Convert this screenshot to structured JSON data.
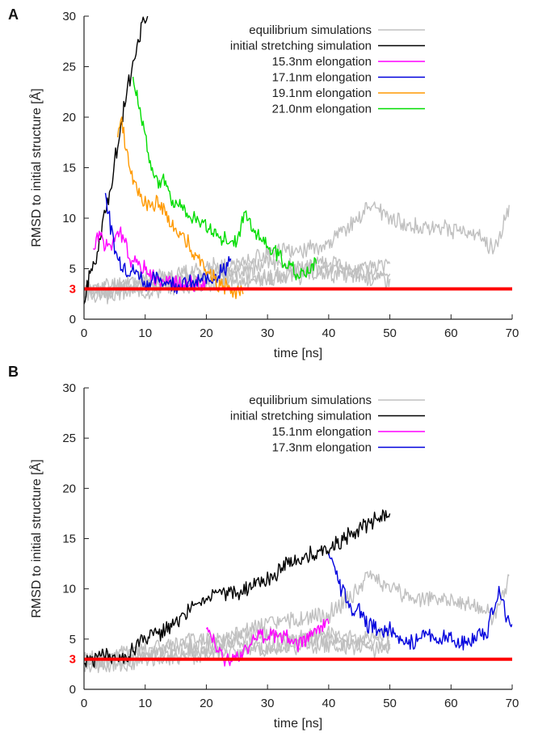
{
  "chart_data": [
    {
      "type": "line",
      "panel_label": "A",
      "xlabel": "time [ns]",
      "ylabel": "RMSD to initial structure [Å]",
      "xlim": [
        0,
        70
      ],
      "ylim": [
        0,
        30
      ],
      "xticks": [
        0,
        10,
        20,
        30,
        40,
        50,
        60,
        70
      ],
      "yticks": [
        0,
        5,
        10,
        15,
        20,
        25,
        30
      ],
      "grid": false,
      "legend_position": "top-right",
      "reference_line": {
        "y": 3,
        "label": "3",
        "color": "#ff0000"
      },
      "series": [
        {
          "name": "equilibrium simulations",
          "color": "#c0c0c0",
          "seed": 11,
          "points": [
            [
              0,
              2.8
            ],
            [
              5,
              3.5
            ],
            [
              10,
              4.0
            ],
            [
              15,
              4.5
            ],
            [
              20,
              5.0
            ],
            [
              25,
              5.5
            ],
            [
              30,
              6.5
            ],
            [
              35,
              6.8
            ],
            [
              40,
              7.5
            ],
            [
              45,
              10.0
            ],
            [
              47,
              11.5
            ],
            [
              50,
              10.0
            ],
            [
              55,
              9.0
            ],
            [
              60,
              9.0
            ],
            [
              65,
              8.0
            ],
            [
              67,
              7.0
            ],
            [
              69,
              10.0
            ],
            [
              69.5,
              11.3
            ]
          ]
        },
        {
          "name": "",
          "color": "#c0c0c0",
          "seed": 12,
          "points": [
            [
              0,
              2.5
            ],
            [
              5,
              3.0
            ],
            [
              10,
              3.5
            ],
            [
              15,
              4.0
            ],
            [
              20,
              4.5
            ],
            [
              25,
              5.0
            ],
            [
              30,
              5.5
            ],
            [
              35,
              5.0
            ],
            [
              40,
              5.0
            ],
            [
              45,
              4.5
            ],
            [
              50,
              4.5
            ]
          ]
        },
        {
          "name": "",
          "color": "#c0c0c0",
          "seed": 13,
          "points": [
            [
              0,
              3.0
            ],
            [
              5,
              2.8
            ],
            [
              10,
              3.5
            ],
            [
              15,
              3.5
            ],
            [
              20,
              4.0
            ],
            [
              25,
              4.5
            ],
            [
              30,
              4.0
            ],
            [
              35,
              5.0
            ],
            [
              40,
              5.5
            ],
            [
              45,
              5.0
            ],
            [
              50,
              5.5
            ]
          ]
        },
        {
          "name": "",
          "color": "#c0c0c0",
          "seed": 14,
          "points": [
            [
              0,
              2.2
            ],
            [
              5,
              2.5
            ],
            [
              10,
              2.8
            ],
            [
              15,
              3.2
            ],
            [
              20,
              3.5
            ],
            [
              25,
              3.8
            ],
            [
              30,
              4.0
            ],
            [
              35,
              4.2
            ],
            [
              40,
              4.5
            ],
            [
              45,
              4.2
            ],
            [
              50,
              4.0
            ]
          ]
        },
        {
          "name": "initial stretching simulation",
          "color": "#000000",
          "seed": 21,
          "points": [
            [
              0,
              1.5
            ],
            [
              1,
              4.5
            ],
            [
              2,
              6.0
            ],
            [
              3,
              9.0
            ],
            [
              4,
              12.0
            ],
            [
              5,
              15.5
            ],
            [
              6,
              19.5
            ],
            [
              7,
              22.5
            ],
            [
              8,
              25.0
            ],
            [
              9,
              28.0
            ],
            [
              10,
              30.0
            ],
            [
              10.4,
              30.0
            ]
          ]
        },
        {
          "name": "15.3nm elongation",
          "color": "#ff00ff",
          "seed": 31,
          "points": [
            [
              1.5,
              7.0
            ],
            [
              2.5,
              8.5
            ],
            [
              4,
              7.0
            ],
            [
              6,
              8.5
            ],
            [
              7,
              7.0
            ],
            [
              8,
              5.5
            ],
            [
              10,
              5.0
            ],
            [
              12,
              4.0
            ],
            [
              14,
              3.5
            ],
            [
              17,
              3.5
            ],
            [
              20,
              3.5
            ]
          ]
        },
        {
          "name": "17.1nm elongation",
          "color": "#0000dd",
          "seed": 32,
          "points": [
            [
              3.5,
              12.5
            ],
            [
              4.5,
              8.5
            ],
            [
              5.5,
              6.0
            ],
            [
              7,
              5.0
            ],
            [
              9,
              4.5
            ],
            [
              10,
              3.5
            ],
            [
              12,
              4.0
            ],
            [
              15,
              3.5
            ],
            [
              18,
              3.5
            ],
            [
              20,
              4.0
            ],
            [
              22,
              4.5
            ],
            [
              23,
              5.0
            ],
            [
              24,
              6.0
            ]
          ]
        },
        {
          "name": "19.1nm elongation",
          "color": "#ff9900",
          "seed": 33,
          "points": [
            [
              5.5,
              18.0
            ],
            [
              6,
              20.0
            ],
            [
              7,
              16.5
            ],
            [
              8,
              13.5
            ],
            [
              10,
              11.5
            ],
            [
              12,
              11.5
            ],
            [
              14,
              9.5
            ],
            [
              16,
              8.5
            ],
            [
              18,
              6.5
            ],
            [
              20,
              5.0
            ],
            [
              22,
              3.5
            ],
            [
              24,
              3.0
            ],
            [
              26,
              2.5
            ]
          ]
        },
        {
          "name": "21.0nm elongation",
          "color": "#00dd00",
          "seed": 34,
          "points": [
            [
              8,
              24.0
            ],
            [
              9,
              21.5
            ],
            [
              10,
              18.0
            ],
            [
              11,
              15.0
            ],
            [
              12,
              13.5
            ],
            [
              13,
              14.0
            ],
            [
              14,
              12.0
            ],
            [
              16,
              11.0
            ],
            [
              18,
              10.0
            ],
            [
              20,
              9.0
            ],
            [
              22,
              8.5
            ],
            [
              24,
              7.5
            ],
            [
              25,
              8.0
            ],
            [
              26,
              10.0
            ],
            [
              27,
              10.0
            ],
            [
              28,
              8.5
            ],
            [
              30,
              7.5
            ],
            [
              32,
              6.0
            ],
            [
              34,
              5.0
            ],
            [
              36,
              4.5
            ],
            [
              38,
              5.5
            ]
          ]
        }
      ]
    },
    {
      "type": "line",
      "panel_label": "B",
      "xlabel": "time [ns]",
      "ylabel": "RMSD to initial structure [Å]",
      "xlim": [
        0,
        70
      ],
      "ylim": [
        0,
        30
      ],
      "xticks": [
        0,
        10,
        20,
        30,
        40,
        50,
        60,
        70
      ],
      "yticks": [
        0,
        5,
        10,
        15,
        20,
        25,
        30
      ],
      "grid": false,
      "legend_position": "top-right",
      "reference_line": {
        "y": 3,
        "label": "3",
        "color": "#ff0000"
      },
      "series": [
        {
          "name": "equilibrium simulations",
          "color": "#c0c0c0",
          "seed": 41,
          "points": [
            [
              0,
              2.8
            ],
            [
              5,
              3.5
            ],
            [
              10,
              4.0
            ],
            [
              15,
              4.5
            ],
            [
              20,
              5.0
            ],
            [
              25,
              5.5
            ],
            [
              30,
              6.5
            ],
            [
              35,
              6.8
            ],
            [
              40,
              7.5
            ],
            [
              45,
              10.0
            ],
            [
              47,
              11.5
            ],
            [
              50,
              10.0
            ],
            [
              55,
              9.0
            ],
            [
              60,
              9.0
            ],
            [
              65,
              8.0
            ],
            [
              67,
              7.0
            ],
            [
              69,
              10.0
            ],
            [
              69.5,
              11.3
            ]
          ]
        },
        {
          "name": "",
          "color": "#c0c0c0",
          "seed": 42,
          "points": [
            [
              0,
              2.5
            ],
            [
              5,
              3.0
            ],
            [
              10,
              3.5
            ],
            [
              15,
              4.0
            ],
            [
              20,
              4.5
            ],
            [
              25,
              5.0
            ],
            [
              30,
              5.5
            ],
            [
              35,
              5.0
            ],
            [
              40,
              5.0
            ],
            [
              45,
              4.5
            ],
            [
              50,
              4.5
            ]
          ]
        },
        {
          "name": "",
          "color": "#c0c0c0",
          "seed": 43,
          "points": [
            [
              0,
              3.0
            ],
            [
              5,
              2.8
            ],
            [
              10,
              3.5
            ],
            [
              15,
              3.5
            ],
            [
              20,
              4.0
            ],
            [
              25,
              4.5
            ],
            [
              30,
              4.0
            ],
            [
              35,
              5.0
            ],
            [
              40,
              5.5
            ],
            [
              45,
              5.0
            ],
            [
              50,
              5.5
            ]
          ]
        },
        {
          "name": "",
          "color": "#c0c0c0",
          "seed": 44,
          "points": [
            [
              0,
              2.2
            ],
            [
              5,
              2.5
            ],
            [
              10,
              2.8
            ],
            [
              15,
              3.2
            ],
            [
              20,
              3.5
            ],
            [
              25,
              3.8
            ],
            [
              30,
              4.0
            ],
            [
              35,
              4.2
            ],
            [
              40,
              4.5
            ],
            [
              45,
              4.2
            ],
            [
              50,
              4.0
            ]
          ]
        },
        {
          "name": "initial stretching simulation",
          "color": "#000000",
          "seed": 51,
          "points": [
            [
              0,
              2.5
            ],
            [
              3,
              3.5
            ],
            [
              6,
              2.8
            ],
            [
              10,
              5.0
            ],
            [
              15,
              6.5
            ],
            [
              20,
              9.5
            ],
            [
              25,
              9.5
            ],
            [
              30,
              11.0
            ],
            [
              35,
              13.0
            ],
            [
              40,
              14.0
            ],
            [
              45,
              16.0
            ],
            [
              48,
              17.0
            ],
            [
              50,
              17.5
            ]
          ]
        },
        {
          "name": "15.1nm elongation",
          "color": "#ff00ff",
          "seed": 52,
          "points": [
            [
              20,
              6.0
            ],
            [
              21,
              5.0
            ],
            [
              22,
              3.5
            ],
            [
              24,
              3.0
            ],
            [
              26,
              3.5
            ],
            [
              28,
              5.0
            ],
            [
              30,
              5.5
            ],
            [
              32,
              5.5
            ],
            [
              35,
              4.5
            ],
            [
              37,
              5.5
            ],
            [
              39,
              6.0
            ],
            [
              40,
              6.5
            ]
          ]
        },
        {
          "name": "17.3nm elongation",
          "color": "#0000dd",
          "seed": 53,
          "points": [
            [
              40,
              13.5
            ],
            [
              41,
              12.5
            ],
            [
              42,
              10.0
            ],
            [
              43,
              9.0
            ],
            [
              44,
              7.5
            ],
            [
              45,
              8.0
            ],
            [
              46,
              6.5
            ],
            [
              48,
              6.0
            ],
            [
              50,
              6.0
            ],
            [
              52,
              5.0
            ],
            [
              54,
              4.5
            ],
            [
              56,
              5.5
            ],
            [
              58,
              5.0
            ],
            [
              60,
              5.0
            ],
            [
              62,
              4.5
            ],
            [
              64,
              5.0
            ],
            [
              66,
              6.0
            ],
            [
              67,
              8.5
            ],
            [
              68,
              10.0
            ],
            [
              69,
              7.0
            ],
            [
              70,
              6.5
            ]
          ]
        }
      ]
    }
  ]
}
